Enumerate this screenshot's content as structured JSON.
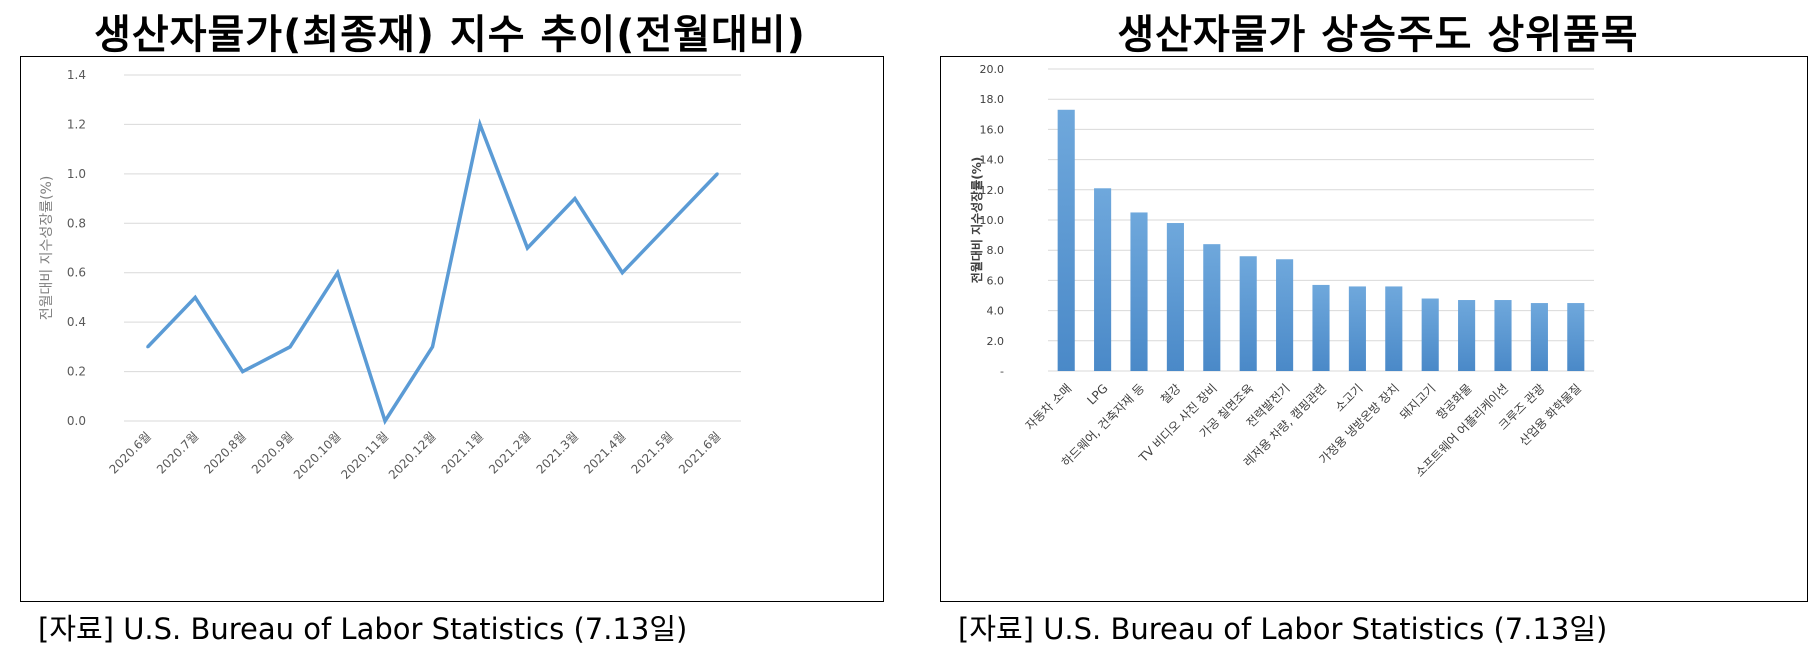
{
  "panels": [
    {
      "title": "생산자물가(최종재) 지수 추이(전월대비)",
      "source": "[자료] U.S. Bureau of Labor Statistics (7.13일)"
    },
    {
      "title": "생산자물가 상승주도 상위품목",
      "source": "[자료] U.S. Bureau of Labor Statistics (7.13일)"
    }
  ],
  "chart_data": [
    {
      "type": "line",
      "title": "생산자물가(최종재) 지수 추이(전월대비)",
      "xlabel": "",
      "ylabel": "전월대비 지수성장률(%)",
      "categories": [
        "2020.6월",
        "2020.7월",
        "2020.8월",
        "2020.9월",
        "2020.10월",
        "2020.11월",
        "2020.12월",
        "2021.1월",
        "2021.2월",
        "2021.3월",
        "2021.4월",
        "2021.5월",
        "2021.6월"
      ],
      "values": [
        0.3,
        0.5,
        0.2,
        0.3,
        0.6,
        0.0,
        0.3,
        1.2,
        0.7,
        0.9,
        0.6,
        0.8,
        1.0
      ],
      "ylim": [
        0,
        1.4
      ],
      "yticks": [
        "0.0",
        "0.2",
        "0.4",
        "0.6",
        "0.8",
        "1.0",
        "1.2",
        "1.4"
      ],
      "grid": true,
      "color": "#5b9bd5"
    },
    {
      "type": "bar",
      "title": "생산자물가 상승주도 상위품목",
      "xlabel": "",
      "ylabel": "전월대비 지수성장률(%)",
      "categories": [
        "자동차 소매",
        "LPG",
        "하드웨어, 건축자재 등",
        "철강",
        "TV 비디오 사진 장비",
        "가공 칠면조육",
        "전력발전기",
        "레저용 차량, 캠핑관련",
        "소고기",
        "가정용 냉방온방 장치",
        "돼지고기",
        "항공화물",
        "소프트웨어 어플리케이션",
        "크루즈 관광",
        "산업용 화학물질"
      ],
      "values": [
        17.3,
        12.1,
        10.5,
        9.8,
        8.4,
        7.6,
        7.4,
        5.7,
        5.6,
        5.6,
        4.8,
        4.7,
        4.7,
        4.5,
        4.5
      ],
      "ylim": [
        0,
        20
      ],
      "yticks": [
        "-",
        "2.0",
        "4.0",
        "6.0",
        "8.0",
        "10.0",
        "12.0",
        "14.0",
        "16.0",
        "18.0",
        "20.0"
      ],
      "grid": true,
      "color": "#5b9bd5"
    }
  ]
}
